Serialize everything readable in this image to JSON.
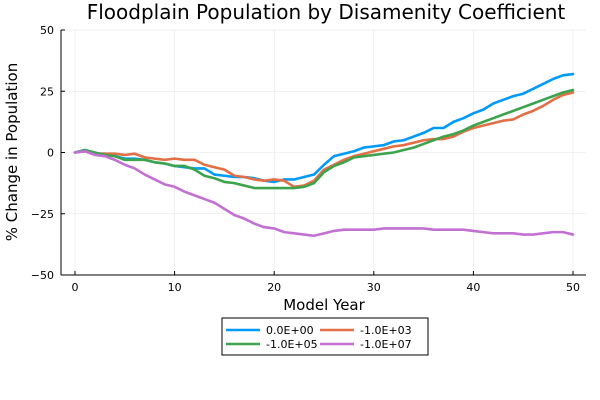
{
  "chart_data": {
    "type": "line",
    "title": "Floodplain Population by Disamenity Coefficient",
    "xlabel": "Model Year",
    "ylabel": "% Change in Population",
    "xlim": [
      0,
      50
    ],
    "ylim": [
      -50,
      50
    ],
    "xticks": [
      0,
      10,
      20,
      30,
      40,
      50
    ],
    "yticks": [
      -50,
      -25,
      0,
      25,
      50
    ],
    "xtick_labels": [
      "0",
      "10",
      "20",
      "30",
      "40",
      "50"
    ],
    "ytick_labels": [
      "−50",
      "−25",
      "0",
      "25",
      "50"
    ],
    "grid": true,
    "legend_position": "bottom-center",
    "x": [
      0,
      1,
      2,
      3,
      4,
      5,
      6,
      7,
      8,
      9,
      10,
      11,
      12,
      13,
      14,
      15,
      16,
      17,
      18,
      19,
      20,
      21,
      22,
      23,
      24,
      25,
      26,
      27,
      28,
      29,
      30,
      31,
      32,
      33,
      34,
      35,
      36,
      37,
      38,
      39,
      40,
      41,
      42,
      43,
      44,
      45,
      46,
      47,
      48,
      49,
      50
    ],
    "series": [
      {
        "name": "0.0E+00",
        "color": "#009AFA",
        "values": [
          0,
          1.0,
          -0.5,
          -0.5,
          -1.5,
          -2.5,
          -2.5,
          -3.0,
          -4.0,
          -4.5,
          -5.5,
          -6.0,
          -6.5,
          -6.5,
          -9.0,
          -9.5,
          -10.0,
          -10.0,
          -10.5,
          -11.5,
          -12.0,
          -11.0,
          -11.0,
          -10.0,
          -9.0,
          -5.0,
          -1.5,
          -0.5,
          0.5,
          2.0,
          2.5,
          3.0,
          4.5,
          5.0,
          6.5,
          8.0,
          10.0,
          10.0,
          12.5,
          14.0,
          16.0,
          17.5,
          20.0,
          21.5,
          23.0,
          24.0,
          26.0,
          28.0,
          30.0,
          31.5,
          32.0
        ]
      },
      {
        "name": "-1.0E+03",
        "color": "#E26F46",
        "values": [
          0,
          0.5,
          -0.5,
          -0.5,
          -0.5,
          -1.0,
          -0.5,
          -2.0,
          -2.5,
          -3.0,
          -2.5,
          -3.0,
          -3.0,
          -5.0,
          -6.0,
          -7.0,
          -9.5,
          -10.0,
          -11.0,
          -11.5,
          -11.0,
          -11.5,
          -14.0,
          -13.5,
          -11.5,
          -7.0,
          -5.0,
          -3.0,
          -1.5,
          -0.5,
          0.5,
          1.5,
          2.5,
          3.0,
          4.0,
          5.0,
          5.5,
          5.5,
          6.5,
          8.5,
          10.0,
          11.0,
          12.0,
          13.0,
          13.5,
          15.5,
          17.0,
          19.0,
          21.5,
          23.5,
          24.5
        ]
      },
      {
        "name": "-1.0E+05",
        "color": "#3DA44D",
        "values": [
          0,
          1.0,
          0,
          -1.0,
          -1.5,
          -3.0,
          -3.0,
          -3.0,
          -4.0,
          -4.5,
          -5.5,
          -5.5,
          -7.0,
          -9.5,
          -10.5,
          -12.0,
          -12.5,
          -13.5,
          -14.5,
          -14.5,
          -14.5,
          -14.5,
          -14.5,
          -14.0,
          -12.5,
          -8.0,
          -5.5,
          -4.0,
          -2.0,
          -1.5,
          -1.0,
          -0.5,
          0,
          1.0,
          2.0,
          3.5,
          5.0,
          6.5,
          7.5,
          9.0,
          11.0,
          12.5,
          14.0,
          15.5,
          17.0,
          18.5,
          20.0,
          21.5,
          23.0,
          24.5,
          25.5
        ]
      },
      {
        "name": "-1.0E+07",
        "color": "#C271D2",
        "values": [
          0,
          0.5,
          -1.0,
          -1.5,
          -3.0,
          -5.0,
          -6.5,
          -9.0,
          -11.0,
          -13.0,
          -14.0,
          -16.0,
          -17.5,
          -19.0,
          -20.5,
          -23.0,
          -25.5,
          -27.0,
          -29.0,
          -30.5,
          -31.0,
          -32.5,
          -33.0,
          -33.5,
          -34.0,
          -33.0,
          -32.0,
          -31.5,
          -31.5,
          -31.5,
          -31.5,
          -31.0,
          -31.0,
          -31.0,
          -31.0,
          -31.0,
          -31.5,
          -31.5,
          -31.5,
          -31.5,
          -32.0,
          -32.5,
          -33.0,
          -33.0,
          -33.0,
          -33.5,
          -33.5,
          -33.0,
          -32.5,
          -32.5,
          -33.5
        ]
      }
    ]
  }
}
